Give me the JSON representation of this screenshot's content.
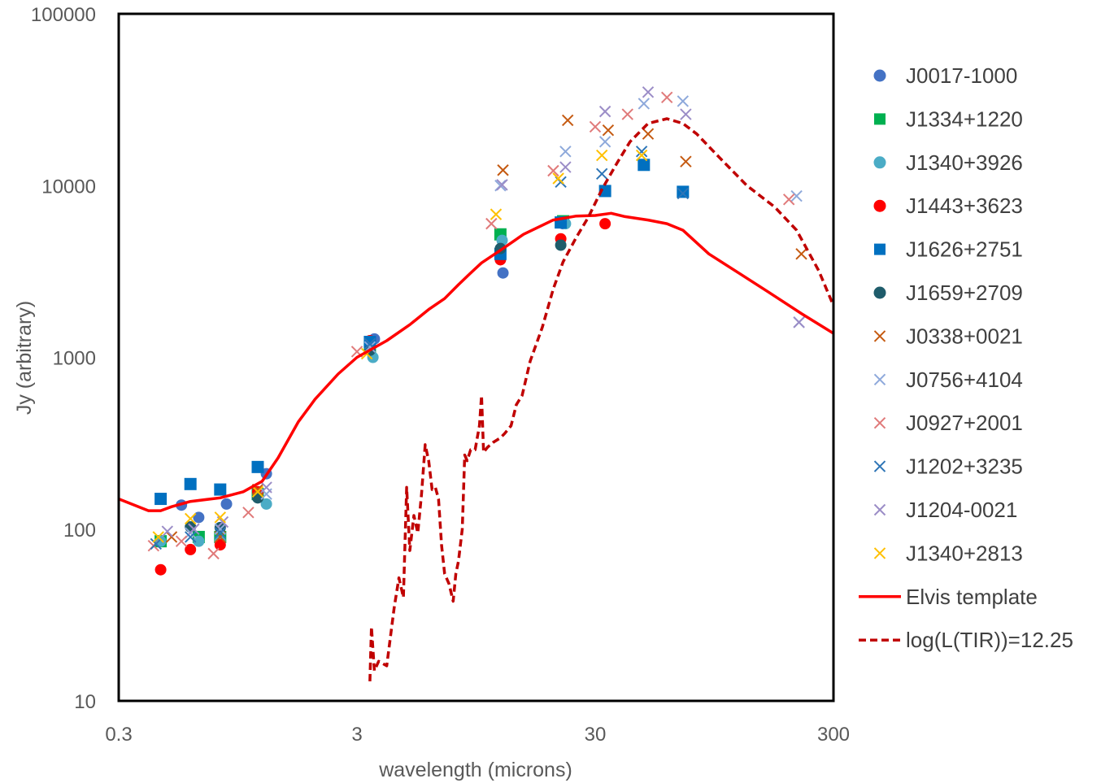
{
  "chart_data": {
    "type": "scatter",
    "title": "",
    "xlabel": "wavelength (microns)",
    "ylabel": "Jy (arbitrary)",
    "x_scale": "log",
    "y_scale": "log",
    "xlim": [
      0.3,
      300
    ],
    "ylim": [
      10,
      100000
    ],
    "x_ticks": [
      0.3,
      3,
      30,
      300
    ],
    "x_tick_labels": [
      "0.3",
      "3",
      "30",
      "300"
    ],
    "y_ticks": [
      10,
      100,
      1000,
      10000,
      100000
    ],
    "y_tick_labels": [
      "10",
      "100",
      "1000",
      "10000",
      "100000"
    ],
    "grid": false,
    "legend_position": "right",
    "series": [
      {
        "name": "J0017-1000",
        "marker": "circle",
        "color": "#4472C4",
        "points": [
          [
            0.65,
            117
          ],
          [
            0.55,
            138
          ],
          [
            0.85,
            140
          ],
          [
            1.25,
            210
          ],
          [
            3.55,
            1280
          ],
          [
            12.3,
            3100
          ],
          [
            22,
            6000
          ]
        ]
      },
      {
        "name": "J1334+1220",
        "marker": "square",
        "color": "#00B050",
        "points": [
          [
            0.45,
            85
          ],
          [
            0.65,
            90
          ],
          [
            0.8,
            90
          ],
          [
            1.15,
            160
          ],
          [
            3.4,
            1150
          ],
          [
            12,
            5200
          ],
          [
            22,
            6200
          ]
        ]
      },
      {
        "name": "J1340+3926",
        "marker": "circle",
        "color": "#4BACC6",
        "points": [
          [
            0.45,
            85
          ],
          [
            0.65,
            85
          ],
          [
            0.8,
            85
          ],
          [
            1.25,
            140
          ],
          [
            3.5,
            1000
          ],
          [
            12.2,
            4800
          ],
          [
            22.5,
            6000
          ]
        ]
      },
      {
        "name": "J1443+3623",
        "marker": "circle",
        "color": "#FF0000",
        "points": [
          [
            0.45,
            58
          ],
          [
            0.6,
            76
          ],
          [
            0.8,
            81
          ],
          [
            1.15,
            165
          ],
          [
            3.4,
            1250
          ],
          [
            12,
            3700
          ],
          [
            21.5,
            4900
          ],
          [
            33,
            6000
          ]
        ]
      },
      {
        "name": "J1626+2751",
        "marker": "square",
        "color": "#0070C0",
        "points": [
          [
            0.45,
            150
          ],
          [
            0.6,
            183
          ],
          [
            0.8,
            170
          ],
          [
            1.15,
            230
          ],
          [
            3.4,
            1230
          ],
          [
            12,
            4000
          ],
          [
            21.5,
            6100
          ],
          [
            33,
            9300
          ],
          [
            48,
            13200
          ],
          [
            70,
            9200
          ]
        ]
      },
      {
        "name": "J1659+2709",
        "marker": "circle",
        "color": "#1F5C6B",
        "points": [
          [
            0.6,
            103
          ],
          [
            0.8,
            102
          ],
          [
            1.15,
            152
          ],
          [
            3.4,
            1100
          ],
          [
            12,
            4300
          ],
          [
            21.5,
            4500
          ]
        ]
      },
      {
        "name": "J0338+0021",
        "marker": "x",
        "color": "#C55A11",
        "points": [
          [
            0.5,
            90
          ],
          [
            0.8,
            90
          ],
          [
            1.15,
            170
          ],
          [
            12.3,
            12300
          ],
          [
            23,
            24000
          ],
          [
            34,
            21000
          ],
          [
            50,
            20000
          ],
          [
            72,
            13800
          ],
          [
            220,
            4000
          ]
        ]
      },
      {
        "name": "J0756+4104",
        "marker": "x",
        "color": "#8EA9DB",
        "points": [
          [
            0.6,
            95
          ],
          [
            0.8,
            100
          ],
          [
            1.25,
            160
          ],
          [
            3.4,
            1150
          ],
          [
            12,
            10000
          ],
          [
            22.5,
            15800
          ],
          [
            33,
            18000
          ],
          [
            48,
            30000
          ],
          [
            70,
            31000
          ],
          [
            210,
            8700
          ],
          [
            215,
            1600
          ]
        ]
      },
      {
        "name": "J0927+2001",
        "marker": "x",
        "color": "#E07A7A",
        "points": [
          [
            0.42,
            80
          ],
          [
            0.55,
            85
          ],
          [
            0.75,
            72
          ],
          [
            1.05,
            125
          ],
          [
            3.0,
            1080
          ],
          [
            11,
            6000
          ],
          [
            20,
            12200
          ],
          [
            30,
            22000
          ],
          [
            41,
            26000
          ],
          [
            60,
            32600
          ],
          [
            195,
            8300
          ]
        ]
      },
      {
        "name": "J1202+3235",
        "marker": "x",
        "color": "#2E75B6",
        "points": [
          [
            0.43,
            82
          ],
          [
            0.6,
            90
          ],
          [
            0.8,
            95
          ],
          [
            3.4,
            1200
          ],
          [
            21.5,
            10500
          ],
          [
            32,
            11700
          ],
          [
            47,
            15800
          ],
          [
            70,
            9000
          ]
        ]
      },
      {
        "name": "J1204-0021",
        "marker": "x",
        "color": "#9B8DC7",
        "points": [
          [
            0.48,
            97
          ],
          [
            0.62,
            100
          ],
          [
            0.82,
            110
          ],
          [
            1.25,
            175
          ],
          [
            12.2,
            10100
          ],
          [
            22.5,
            12800
          ],
          [
            33,
            27000
          ],
          [
            50,
            35000
          ],
          [
            72,
            26000
          ],
          [
            215,
            1600
          ]
        ]
      },
      {
        "name": "J1340+2813",
        "marker": "x",
        "color": "#FFC000",
        "points": [
          [
            0.44,
            90
          ],
          [
            0.6,
            115
          ],
          [
            0.8,
            117
          ],
          [
            1.15,
            165
          ],
          [
            3.3,
            1050
          ],
          [
            11.5,
            6800
          ],
          [
            21,
            11000
          ],
          [
            32,
            15000
          ],
          [
            47,
            15000
          ]
        ]
      },
      {
        "name": "Elvis template",
        "marker": "line",
        "color": "#FF0000",
        "points": [
          [
            0.3,
            150
          ],
          [
            0.4,
            128
          ],
          [
            0.45,
            128
          ],
          [
            0.5,
            135
          ],
          [
            0.6,
            145
          ],
          [
            0.8,
            152
          ],
          [
            1.0,
            165
          ],
          [
            1.2,
            190
          ],
          [
            1.4,
            260
          ],
          [
            1.7,
            420
          ],
          [
            2.0,
            570
          ],
          [
            2.5,
            800
          ],
          [
            3.0,
            1000
          ],
          [
            4.0,
            1250
          ],
          [
            5.0,
            1550
          ],
          [
            6.0,
            1900
          ],
          [
            7.0,
            2200
          ],
          [
            8.0,
            2650
          ],
          [
            9.0,
            3100
          ],
          [
            10.0,
            3550
          ],
          [
            12.0,
            4200
          ],
          [
            15.0,
            5200
          ],
          [
            20.0,
            6300
          ],
          [
            25.0,
            6650
          ],
          [
            30.0,
            6700
          ],
          [
            35.0,
            6900
          ],
          [
            40.0,
            6600
          ],
          [
            50.0,
            6300
          ],
          [
            60.0,
            6000
          ],
          [
            70.0,
            5500
          ],
          [
            90.0,
            4000
          ],
          [
            120.0,
            3100
          ],
          [
            160.0,
            2400
          ],
          [
            220.0,
            1800
          ],
          [
            300.0,
            1380
          ]
        ]
      },
      {
        "name": "log(L(TIR))=12.25",
        "marker": "dashed",
        "color": "#C00000",
        "points": [
          [
            3.4,
            13
          ],
          [
            3.45,
            27
          ],
          [
            3.55,
            15
          ],
          [
            3.7,
            17
          ],
          [
            4.0,
            16
          ],
          [
            4.3,
            35
          ],
          [
            4.5,
            52
          ],
          [
            4.7,
            40
          ],
          [
            4.85,
            175
          ],
          [
            5.0,
            75
          ],
          [
            5.2,
            120
          ],
          [
            5.4,
            95
          ],
          [
            5.6,
            160
          ],
          [
            5.8,
            310
          ],
          [
            6.0,
            250
          ],
          [
            6.2,
            170
          ],
          [
            6.4,
            175
          ],
          [
            6.6,
            150
          ],
          [
            6.8,
            80
          ],
          [
            7.0,
            55
          ],
          [
            7.3,
            48
          ],
          [
            7.6,
            38
          ],
          [
            7.8,
            55
          ],
          [
            8.0,
            65
          ],
          [
            8.3,
            100
          ],
          [
            8.5,
            270
          ],
          [
            8.7,
            250
          ],
          [
            9.0,
            290
          ],
          [
            9.4,
            290
          ],
          [
            9.8,
            400
          ],
          [
            10.0,
            600
          ],
          [
            10.2,
            280
          ],
          [
            10.6,
            300
          ],
          [
            11.2,
            320
          ],
          [
            12.0,
            340
          ],
          [
            12.5,
            360
          ],
          [
            13.3,
            400
          ],
          [
            14.0,
            530
          ],
          [
            14.8,
            600
          ],
          [
            16.0,
            950
          ],
          [
            18.0,
            1500
          ],
          [
            20.0,
            2500
          ],
          [
            22.0,
            3600
          ],
          [
            25.0,
            5000
          ],
          [
            28.0,
            6500
          ],
          [
            32.0,
            9500
          ],
          [
            37.0,
            13500
          ],
          [
            42.0,
            18000
          ],
          [
            50.0,
            23000
          ],
          [
            60.0,
            24500
          ],
          [
            70.0,
            23000
          ],
          [
            80.0,
            20000
          ],
          [
            100.0,
            14500
          ],
          [
            130.0,
            10000
          ],
          [
            170.0,
            7500
          ],
          [
            210.0,
            5500
          ],
          [
            260.0,
            3200
          ],
          [
            300.0,
            2000
          ]
        ]
      }
    ]
  }
}
